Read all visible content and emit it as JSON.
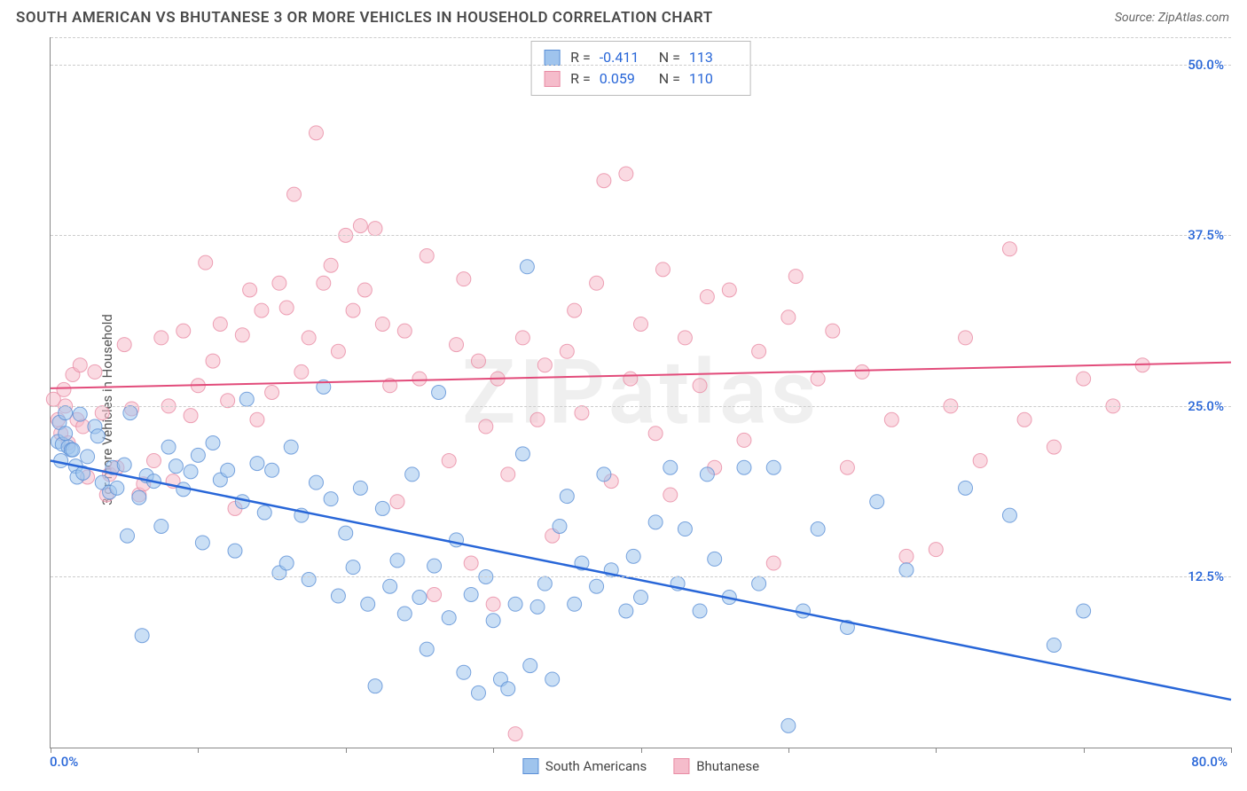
{
  "title": "SOUTH AMERICAN VS BHUTANESE 3 OR MORE VEHICLES IN HOUSEHOLD CORRELATION CHART",
  "source": "Source: ZipAtlas.com",
  "watermark": "ZIPatlas",
  "y_axis_label": "3 or more Vehicles in Household",
  "colors": {
    "series_a_fill": "#9fc4ed",
    "series_a_stroke": "#5a8fd6",
    "series_b_fill": "#f5bccb",
    "series_b_stroke": "#e88ba4",
    "trend_a": "#2866d8",
    "trend_b": "#e24b7a",
    "tick_text": "#2866d8",
    "grid": "#cccccc",
    "axis": "#888888",
    "title_text": "#4a4a4a"
  },
  "chart": {
    "type": "scatter",
    "xlim": [
      0,
      80
    ],
    "ylim": [
      0,
      52
    ],
    "y_ticks": [
      12.5,
      25.0,
      37.5,
      50.0
    ],
    "y_tick_labels": [
      "12.5%",
      "25.0%",
      "37.5%",
      "50.0%"
    ],
    "x_tick_positions": [
      0,
      10,
      20,
      30,
      40,
      50,
      60,
      70,
      80
    ],
    "x_tick_left_label": "0.0%",
    "x_tick_right_label": "80.0%",
    "marker_radius": 8,
    "marker_opacity": 0.55,
    "line_width_a": 2.5,
    "line_width_b": 2,
    "background": "#ffffff"
  },
  "stats": {
    "a": {
      "R": "-0.411",
      "N": "113"
    },
    "b": {
      "R": "0.059",
      "N": "110"
    }
  },
  "legend": {
    "a": "South Americans",
    "b": "Bhutanese"
  },
  "trend_lines": {
    "a": {
      "x1": 0,
      "y1": 21.0,
      "x2": 80,
      "y2": 3.5
    },
    "b": {
      "x1": 0,
      "y1": 26.3,
      "x2": 80,
      "y2": 28.2
    }
  },
  "series_a": [
    [
      0.5,
      22.4
    ],
    [
      0.6,
      23.8
    ],
    [
      0.7,
      21.0
    ],
    [
      0.8,
      22.2
    ],
    [
      1.0,
      24.5
    ],
    [
      1.0,
      23.0
    ],
    [
      1.2,
      22.0
    ],
    [
      1.4,
      21.8
    ],
    [
      1.5,
      21.8
    ],
    [
      1.7,
      20.6
    ],
    [
      1.8,
      19.8
    ],
    [
      2.0,
      24.4
    ],
    [
      2.2,
      20.1
    ],
    [
      2.5,
      21.3
    ],
    [
      3.0,
      23.5
    ],
    [
      3.2,
      22.8
    ],
    [
      3.5,
      19.4
    ],
    [
      4.0,
      18.7
    ],
    [
      4.2,
      20.5
    ],
    [
      4.5,
      19.0
    ],
    [
      5.0,
      20.7
    ],
    [
      5.2,
      15.5
    ],
    [
      5.4,
      24.5
    ],
    [
      6.0,
      18.3
    ],
    [
      6.2,
      8.2
    ],
    [
      6.5,
      19.9
    ],
    [
      7.0,
      19.5
    ],
    [
      7.5,
      16.2
    ],
    [
      8.0,
      22.0
    ],
    [
      8.5,
      20.6
    ],
    [
      9.0,
      18.9
    ],
    [
      9.5,
      20.2
    ],
    [
      10.0,
      21.4
    ],
    [
      10.3,
      15.0
    ],
    [
      11.0,
      22.3
    ],
    [
      11.5,
      19.6
    ],
    [
      12.0,
      20.3
    ],
    [
      12.5,
      14.4
    ],
    [
      13.0,
      18.0
    ],
    [
      13.3,
      25.5
    ],
    [
      14.0,
      20.8
    ],
    [
      14.5,
      17.2
    ],
    [
      15.0,
      20.3
    ],
    [
      15.5,
      12.8
    ],
    [
      16.0,
      13.5
    ],
    [
      16.3,
      22.0
    ],
    [
      17.0,
      17.0
    ],
    [
      17.5,
      12.3
    ],
    [
      18.0,
      19.4
    ],
    [
      18.5,
      26.4
    ],
    [
      19.0,
      18.2
    ],
    [
      19.5,
      11.1
    ],
    [
      20.0,
      15.7
    ],
    [
      20.5,
      13.2
    ],
    [
      21.0,
      19.0
    ],
    [
      21.5,
      10.5
    ],
    [
      22.0,
      4.5
    ],
    [
      22.5,
      17.5
    ],
    [
      23.0,
      11.8
    ],
    [
      23.5,
      13.7
    ],
    [
      24.0,
      9.8
    ],
    [
      24.5,
      20.0
    ],
    [
      25.0,
      11.0
    ],
    [
      25.5,
      7.2
    ],
    [
      26.0,
      13.3
    ],
    [
      26.3,
      26.0
    ],
    [
      27.0,
      9.5
    ],
    [
      27.5,
      15.2
    ],
    [
      28.0,
      5.5
    ],
    [
      28.5,
      11.2
    ],
    [
      29.0,
      4.0
    ],
    [
      29.5,
      12.5
    ],
    [
      30.0,
      9.3
    ],
    [
      30.5,
      5.0
    ],
    [
      31.0,
      4.3
    ],
    [
      31.5,
      10.5
    ],
    [
      32.0,
      21.5
    ],
    [
      32.3,
      35.2
    ],
    [
      32.5,
      6.0
    ],
    [
      33.0,
      10.3
    ],
    [
      33.5,
      12.0
    ],
    [
      34.0,
      5.0
    ],
    [
      34.5,
      16.2
    ],
    [
      35.0,
      18.4
    ],
    [
      35.5,
      10.5
    ],
    [
      36.0,
      13.5
    ],
    [
      37.0,
      11.8
    ],
    [
      37.5,
      20.0
    ],
    [
      38.0,
      13.0
    ],
    [
      39.0,
      10.0
    ],
    [
      39.5,
      14.0
    ],
    [
      40.0,
      11.0
    ],
    [
      41.0,
      16.5
    ],
    [
      42.0,
      20.5
    ],
    [
      42.5,
      12.0
    ],
    [
      43.0,
      16.0
    ],
    [
      44.0,
      10.0
    ],
    [
      44.5,
      20.0
    ],
    [
      45.0,
      13.8
    ],
    [
      46.0,
      11.0
    ],
    [
      47.0,
      20.5
    ],
    [
      48.0,
      12.0
    ],
    [
      49.0,
      20.5
    ],
    [
      50.0,
      1.6
    ],
    [
      51.0,
      10.0
    ],
    [
      52.0,
      16.0
    ],
    [
      54.0,
      8.8
    ],
    [
      56.0,
      18.0
    ],
    [
      58.0,
      13.0
    ],
    [
      62.0,
      19.0
    ],
    [
      65.0,
      17.0
    ],
    [
      68.0,
      7.5
    ],
    [
      70.0,
      10.0
    ]
  ],
  "series_b": [
    [
      0.2,
      25.5
    ],
    [
      0.5,
      24.0
    ],
    [
      0.7,
      23.0
    ],
    [
      0.9,
      26.2
    ],
    [
      1.0,
      25.0
    ],
    [
      1.2,
      22.3
    ],
    [
      1.5,
      27.3
    ],
    [
      1.8,
      24.0
    ],
    [
      2.0,
      28.0
    ],
    [
      2.2,
      23.5
    ],
    [
      2.5,
      19.8
    ],
    [
      3.0,
      27.5
    ],
    [
      3.5,
      24.5
    ],
    [
      3.8,
      18.5
    ],
    [
      4.0,
      20.0
    ],
    [
      4.5,
      20.5
    ],
    [
      5.0,
      29.5
    ],
    [
      5.5,
      24.8
    ],
    [
      6.0,
      18.5
    ],
    [
      6.3,
      19.3
    ],
    [
      7.0,
      21.0
    ],
    [
      7.5,
      30.0
    ],
    [
      8.0,
      25.0
    ],
    [
      8.3,
      19.5
    ],
    [
      9.0,
      30.5
    ],
    [
      9.5,
      24.3
    ],
    [
      10.0,
      26.5
    ],
    [
      10.5,
      35.5
    ],
    [
      11.0,
      28.3
    ],
    [
      11.5,
      31.0
    ],
    [
      12.0,
      25.4
    ],
    [
      12.5,
      17.5
    ],
    [
      13.0,
      30.2
    ],
    [
      13.5,
      33.5
    ],
    [
      14.0,
      24.0
    ],
    [
      14.3,
      32.0
    ],
    [
      15.0,
      26.0
    ],
    [
      15.5,
      34.0
    ],
    [
      16.0,
      32.2
    ],
    [
      16.5,
      40.5
    ],
    [
      17.0,
      27.5
    ],
    [
      17.5,
      30.0
    ],
    [
      18.0,
      45.0
    ],
    [
      18.5,
      34.0
    ],
    [
      19.0,
      35.3
    ],
    [
      19.5,
      29.0
    ],
    [
      20.0,
      37.5
    ],
    [
      20.5,
      32.0
    ],
    [
      21.0,
      38.2
    ],
    [
      21.3,
      33.5
    ],
    [
      22.0,
      38.0
    ],
    [
      22.5,
      31.0
    ],
    [
      23.0,
      26.5
    ],
    [
      23.5,
      18.0
    ],
    [
      24.0,
      30.5
    ],
    [
      25.0,
      27.0
    ],
    [
      25.5,
      36.0
    ],
    [
      26.0,
      11.2
    ],
    [
      27.0,
      21.0
    ],
    [
      27.5,
      29.5
    ],
    [
      28.0,
      34.3
    ],
    [
      28.5,
      13.5
    ],
    [
      29.0,
      28.3
    ],
    [
      29.5,
      23.5
    ],
    [
      30.0,
      10.5
    ],
    [
      30.3,
      27.0
    ],
    [
      31.0,
      20.0
    ],
    [
      31.5,
      1.0
    ],
    [
      32.0,
      30.0
    ],
    [
      33.0,
      24.0
    ],
    [
      33.5,
      28.0
    ],
    [
      34.0,
      15.5
    ],
    [
      35.0,
      29.0
    ],
    [
      35.5,
      32.0
    ],
    [
      36.0,
      24.5
    ],
    [
      37.0,
      34.0
    ],
    [
      37.5,
      41.5
    ],
    [
      38.0,
      19.5
    ],
    [
      39.0,
      42.0
    ],
    [
      39.3,
      27.0
    ],
    [
      40.0,
      31.0
    ],
    [
      41.0,
      23.0
    ],
    [
      41.5,
      35.0
    ],
    [
      42.0,
      18.5
    ],
    [
      43.0,
      30.0
    ],
    [
      44.0,
      26.5
    ],
    [
      44.5,
      33.0
    ],
    [
      45.0,
      20.5
    ],
    [
      46.0,
      33.5
    ],
    [
      47.0,
      22.5
    ],
    [
      48.0,
      29.0
    ],
    [
      49.0,
      13.5
    ],
    [
      50.0,
      31.5
    ],
    [
      50.5,
      34.5
    ],
    [
      52.0,
      27.0
    ],
    [
      53.0,
      30.5
    ],
    [
      54.0,
      20.5
    ],
    [
      55.0,
      27.5
    ],
    [
      57.0,
      24.0
    ],
    [
      58.0,
      14.0
    ],
    [
      60.0,
      14.5
    ],
    [
      61.0,
      25.0
    ],
    [
      62.0,
      30.0
    ],
    [
      63.0,
      21.0
    ],
    [
      65.0,
      36.5
    ],
    [
      66.0,
      24.0
    ],
    [
      68.0,
      22.0
    ],
    [
      70.0,
      27.0
    ],
    [
      72.0,
      25.0
    ],
    [
      74.0,
      28.0
    ]
  ]
}
